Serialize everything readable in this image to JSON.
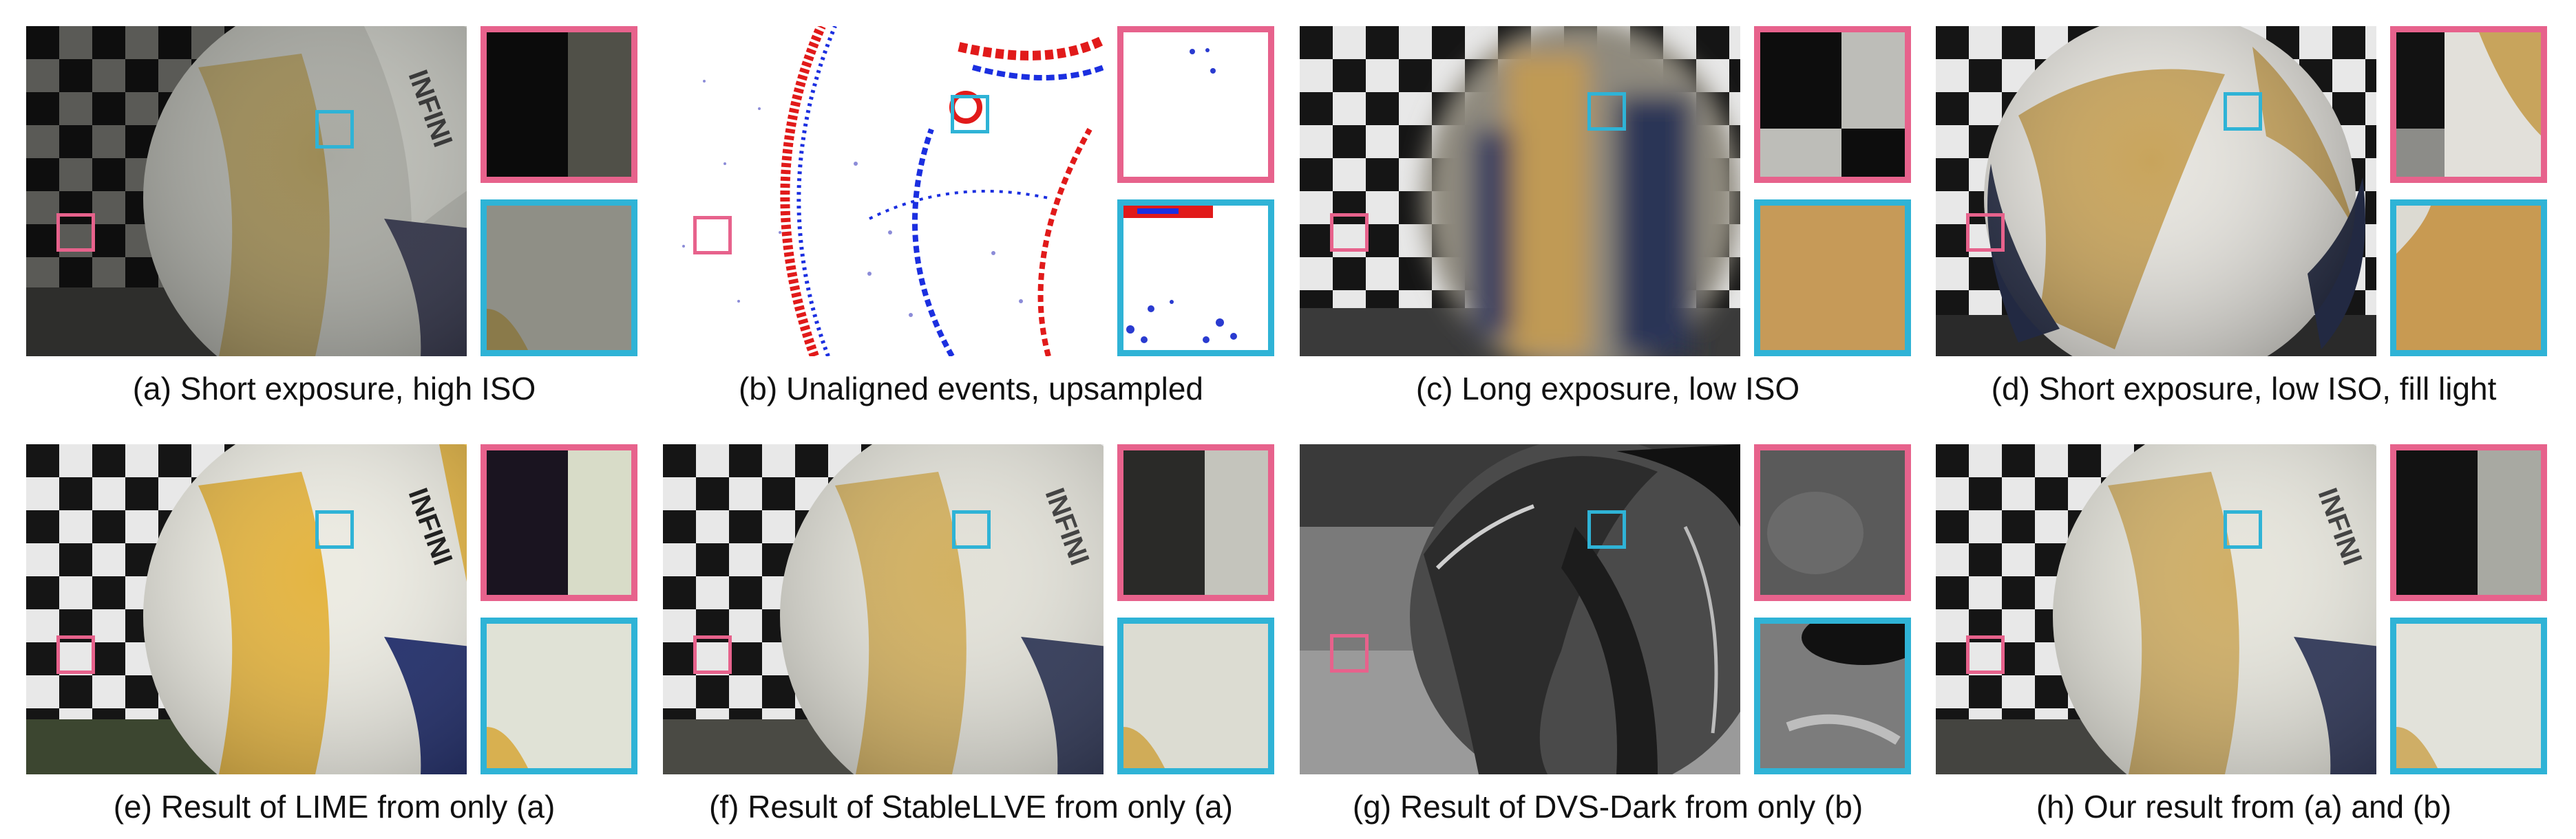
{
  "panels": [
    {
      "id": "a",
      "caption": "(a) Short exposure, high ISO"
    },
    {
      "id": "b",
      "caption": "(b) Unaligned events, upsampled"
    },
    {
      "id": "c",
      "caption": "(c) Long exposure, low ISO"
    },
    {
      "id": "d",
      "caption": "(d) Short exposure, low ISO, fill light"
    },
    {
      "id": "e",
      "caption": "(e) Result of LIME from only (a)"
    },
    {
      "id": "f",
      "caption": "(f) Result of StableLLVE from only (a)"
    },
    {
      "id": "g",
      "caption": "(g) Result of DVS-Dark from only (b)"
    },
    {
      "id": "h",
      "caption": "(h) Our result from (a) and (b)"
    }
  ],
  "ball_text": "INFINI",
  "colors": {
    "pink_box": "#e7628c",
    "cyan_box": "#2fb3d6",
    "event_positive": "#e11a1a",
    "event_negative": "#1b2fe0"
  }
}
